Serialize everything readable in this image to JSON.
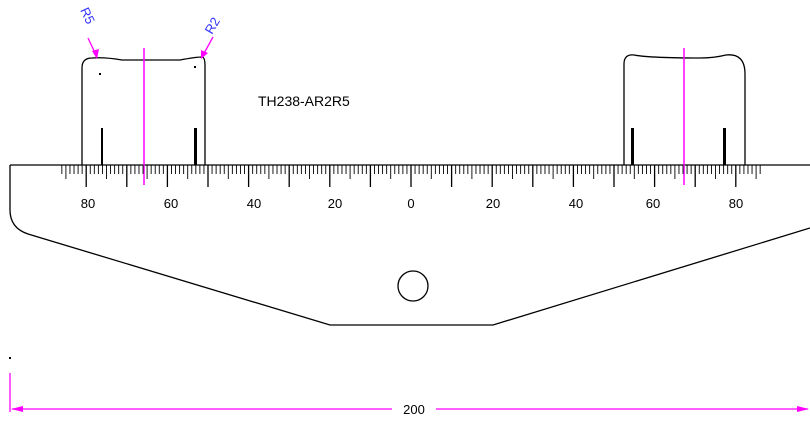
{
  "drawing": {
    "part_number": "TH238-AR2R5",
    "radius_labels": [
      "R5",
      "R2"
    ],
    "overall_dimension": "200",
    "scale": {
      "labels_left": [
        "80",
        "60",
        "40",
        "20"
      ],
      "label_center": "0",
      "labels_right": [
        "20",
        "40",
        "60",
        "80"
      ]
    },
    "colors": {
      "outline": "#000000",
      "centerline": "#ff00ff",
      "dimension": "#ff00ff",
      "radius_label": "#3333ff"
    }
  }
}
